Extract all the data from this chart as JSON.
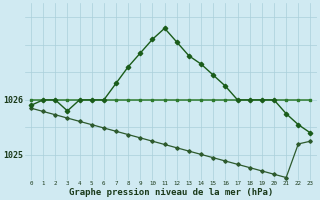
{
  "hours": [
    0,
    1,
    2,
    3,
    4,
    5,
    6,
    7,
    8,
    9,
    10,
    11,
    12,
    13,
    14,
    15,
    16,
    17,
    18,
    19,
    20,
    21,
    22,
    23
  ],
  "line1": [
    1025.9,
    1026.0,
    1026.0,
    1025.8,
    1026.0,
    1026.0,
    1026.0,
    1026.3,
    1026.6,
    1026.85,
    1027.1,
    1027.3,
    1027.05,
    1026.8,
    1026.65,
    1026.45,
    1026.25,
    1026.0,
    1026.0,
    1026.0,
    1026.0,
    1025.75,
    1025.55,
    1025.4
  ],
  "line2": [
    1026.0,
    1026.0,
    1026.0,
    1026.0,
    1026.0,
    1026.0,
    1026.0,
    1026.0,
    1026.0,
    1026.0,
    1026.0,
    1026.0,
    1026.0,
    1026.0,
    1026.0,
    1026.0,
    1026.0,
    1026.0,
    1026.0,
    1026.0,
    1026.0,
    1026.0,
    1026.0,
    1026.0
  ],
  "line3_x": [
    0,
    1,
    2,
    3,
    4,
    5,
    6,
    7,
    8,
    9,
    10,
    11,
    12,
    13,
    14,
    15,
    16,
    17,
    18,
    19,
    20,
    21,
    22,
    23
  ],
  "line3_y": [
    1025.85,
    1025.79,
    1025.73,
    1025.67,
    1025.61,
    1025.55,
    1025.49,
    1025.43,
    1025.37,
    1025.31,
    1025.25,
    1025.19,
    1025.13,
    1025.07,
    1025.01,
    1024.95,
    1024.89,
    1024.83,
    1024.77,
    1024.71,
    1024.65,
    1024.59,
    1025.2,
    1025.25
  ],
  "bg_color": "#d0eaf2",
  "grid_color": "#aacfdb",
  "line1_color": "#1a5c1a",
  "line2_color": "#2d7a2d",
  "line3_color": "#2d5a2d",
  "xlabel": "Graphe pression niveau de la mer (hPa)",
  "ylim_min": 1024.55,
  "ylim_max": 1027.75,
  "ytick_positions": [
    1025.0,
    1026.0
  ],
  "ytick_labels": [
    "1025",
    "1026"
  ],
  "xtick_labels": [
    "0",
    "1",
    "2",
    "3",
    "4",
    "5",
    "6",
    "7",
    "8",
    "9",
    "10",
    "11",
    "12",
    "13",
    "14",
    "15",
    "16",
    "17",
    "18",
    "19",
    "20",
    "21",
    "22",
    "23"
  ]
}
